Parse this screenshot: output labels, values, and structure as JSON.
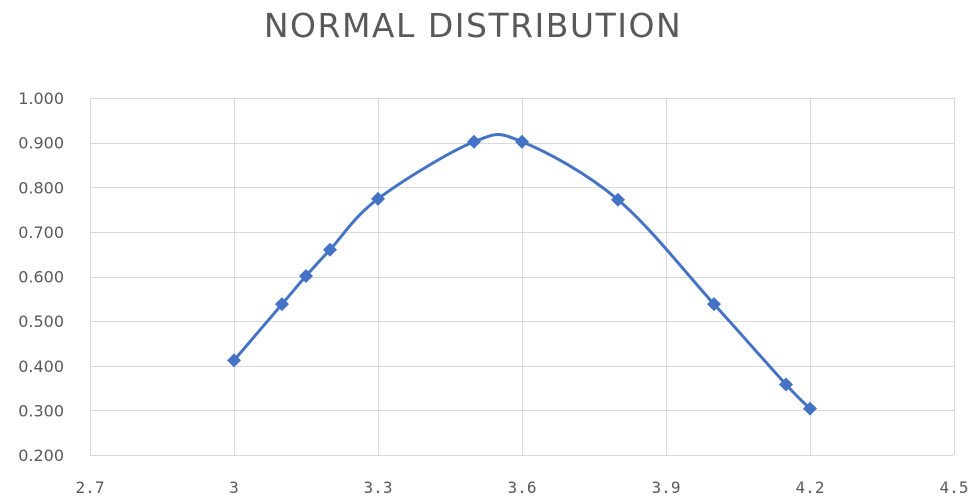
{
  "chart_data": {
    "type": "scatter",
    "title": "NORMAL DISTRIBUTION",
    "xlabel": "",
    "ylabel": "",
    "xlim": [
      2.7,
      4.5
    ],
    "ylim": [
      0.2,
      1.0
    ],
    "x_ticks": [
      "2.7",
      "3",
      "3.3",
      "3.6",
      "3.9",
      "4.2",
      "4.5"
    ],
    "x_tick_values": [
      2.7,
      3.0,
      3.3,
      3.6,
      3.9,
      4.2,
      4.5
    ],
    "y_ticks": [
      "0.200",
      "0.300",
      "0.400",
      "0.500",
      "0.600",
      "0.700",
      "0.800",
      "0.900",
      "1.000"
    ],
    "y_tick_values": [
      0.2,
      0.3,
      0.4,
      0.5,
      0.6,
      0.7,
      0.8,
      0.9,
      1.0
    ],
    "grid": true,
    "smooth_line": true,
    "marker": "diamond",
    "series": [
      {
        "color": "#4472C4",
        "x": [
          3.0,
          3.1,
          3.15,
          3.2,
          3.3,
          3.5,
          3.6,
          3.8,
          4.0,
          4.15,
          4.2
        ],
        "y": [
          0.412,
          0.538,
          0.601,
          0.66,
          0.774,
          0.902,
          0.902,
          0.772,
          0.538,
          0.358,
          0.304
        ]
      }
    ]
  }
}
